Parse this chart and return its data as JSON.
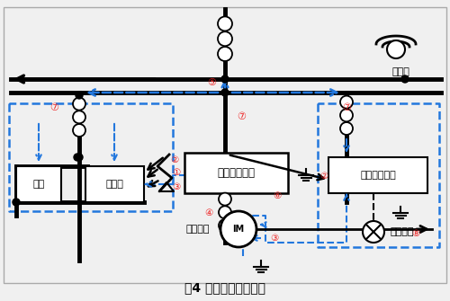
{
  "title": "図4 ノイズの伝播経路",
  "title_fontsize": 10,
  "bg": "#f0f0f0",
  "blue": "#2277dd",
  "red": "#ee2222",
  "black": "#000000",
  "labels": {
    "inverter": "インバーター",
    "keiki": "計器",
    "jushink": "受信機",
    "sensor_elec": "センサー電源",
    "motor": "モーター",
    "motor_sym": "IM",
    "sensor": "センサー",
    "phone": "電話機"
  },
  "circled": [
    "①",
    "②",
    "③",
    "④",
    "⑤",
    "⑥",
    "⑦",
    "⑧"
  ]
}
